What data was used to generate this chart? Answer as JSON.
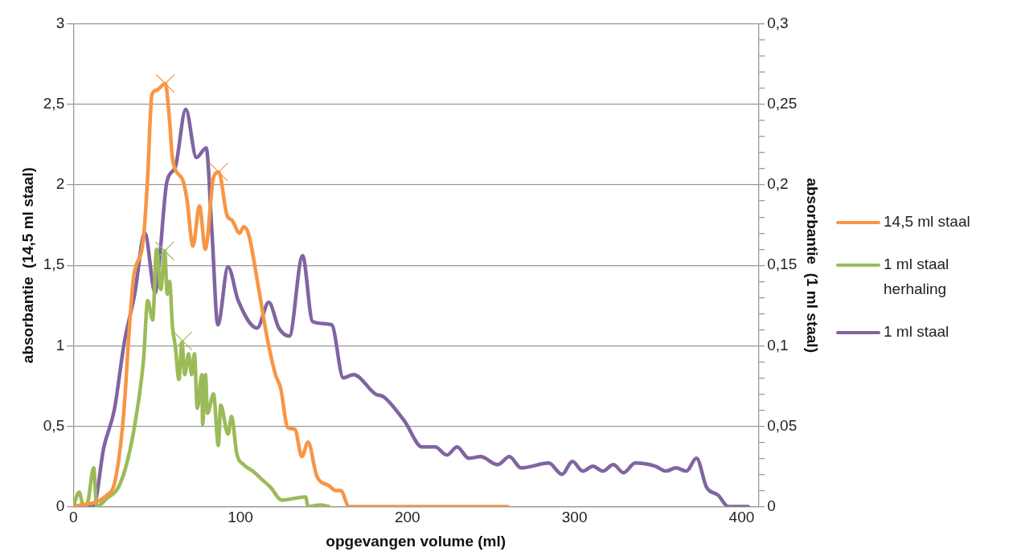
{
  "chart_data": {
    "type": "line",
    "xlabel": "opgevangen volume (ml)",
    "ylabel": "absorbantie  (14,5 ml staal)",
    "y2label": "absorbantie  (1 ml staal)",
    "xlim": [
      0,
      410
    ],
    "xticks": [
      0,
      100,
      200,
      300,
      400
    ],
    "ylim": [
      0,
      3
    ],
    "yticks": [
      0,
      {
        "value": 0.5,
        "label": "0,5"
      },
      1,
      {
        "value": 1.5,
        "label": "1,5"
      },
      2,
      {
        "value": 2.5,
        "label": "2,5"
      },
      3
    ],
    "y2lim": [
      0,
      0.3
    ],
    "y2ticks": [
      0,
      {
        "value": 0.01,
        "label": null
      },
      {
        "value": 0.02,
        "label": null
      },
      {
        "value": 0.03,
        "label": null
      },
      {
        "value": 0.04,
        "label": null
      },
      {
        "value": 0.05,
        "label": "0,05"
      },
      {
        "value": 0.06,
        "label": null
      },
      {
        "value": 0.07,
        "label": null
      },
      {
        "value": 0.08,
        "label": null
      },
      {
        "value": 0.09,
        "label": null
      },
      {
        "value": 0.1,
        "label": "0,1"
      },
      {
        "value": 0.11,
        "label": null
      },
      {
        "value": 0.12,
        "label": null
      },
      {
        "value": 0.13,
        "label": null
      },
      {
        "value": 0.14,
        "label": null
      },
      {
        "value": 0.15,
        "label": "0,15"
      },
      {
        "value": 0.16,
        "label": null
      },
      {
        "value": 0.17,
        "label": null
      },
      {
        "value": 0.18,
        "label": null
      },
      {
        "value": 0.19,
        "label": null
      },
      {
        "value": 0.2,
        "label": "0,2"
      },
      {
        "value": 0.21,
        "label": null
      },
      {
        "value": 0.22,
        "label": null
      },
      {
        "value": 0.23,
        "label": null
      },
      {
        "value": 0.24,
        "label": null
      },
      {
        "value": 0.25,
        "label": "0,25"
      },
      {
        "value": 0.26,
        "label": null
      },
      {
        "value": 0.27,
        "label": null
      },
      {
        "value": 0.28,
        "label": null
      },
      {
        "value": 0.29,
        "label": null
      },
      {
        "value": 0.3,
        "label": "0,3"
      }
    ],
    "grid": "y",
    "legend": "right",
    "marker": "none",
    "line_style": "solid",
    "series": [
      {
        "name": "14,5 ml staal",
        "color": "#f79646",
        "x": [
          0,
          20,
          25,
          30,
          34,
          36,
          42,
          44.5,
          47,
          50,
          55,
          57.6,
          59.4,
          65.5,
          68,
          71.6,
          75.5,
          79,
          84,
          87,
          92,
          95,
          99.6,
          102,
          105,
          111,
          116,
          121,
          124,
          128.4,
          132.6,
          136.8,
          140.5,
          145.7,
          152.9,
          157,
          160,
          165,
          260
        ],
        "values": [
          0,
          0.07,
          0.16,
          0.56,
          1.18,
          1.42,
          1.67,
          2.05,
          2.56,
          2.59,
          2.63,
          2.4,
          2.16,
          2.03,
          1.91,
          1.62,
          1.87,
          1.6,
          2.05,
          2.08,
          1.81,
          1.78,
          1.7,
          1.74,
          1.69,
          1.35,
          1.05,
          0.82,
          0.74,
          0.49,
          0.48,
          0.31,
          0.4,
          0.19,
          0.13,
          0.1,
          0.1,
          0,
          0
        ]
      },
      {
        "name": "1 ml staal herhaling",
        "color": "#9bbb59",
        "axis": "y2",
        "x": [
          0,
          3.5,
          6,
          8.7,
          12.2,
          14,
          20,
          27,
          32.3,
          37.6,
          42,
          44.5,
          47.5,
          49.8,
          52.4,
          54.7,
          56.2,
          57.6,
          59.4,
          61,
          63.2,
          65,
          66.7,
          69,
          70.8,
          72.5,
          74.2,
          76.9,
          77.4,
          79.1,
          80.3,
          83.9,
          86.8,
          88.2,
          92.6,
          94.7,
          97.8,
          102,
          107.4,
          112.7,
          118,
          124.7,
          139,
          140.5,
          148,
          153
        ],
        "values": [
          0,
          0.009,
          0,
          0.003,
          0.024,
          0,
          0.005,
          0.012,
          0.028,
          0.056,
          0.091,
          0.128,
          0.116,
          0.16,
          0.135,
          0.159,
          0.132,
          0.14,
          0.111,
          0.1,
          0.079,
          0.102,
          0.082,
          0.095,
          0.082,
          0.095,
          0.061,
          0.082,
          0.051,
          0.082,
          0.058,
          0.07,
          0.038,
          0.063,
          0.045,
          0.056,
          0.033,
          0.026,
          0.022,
          0.017,
          0.012,
          0.004,
          0.006,
          0,
          0.001,
          0
        ]
      },
      {
        "name": "1 ml staal",
        "color": "#8064a2",
        "axis": "y2",
        "x": [
          0,
          12,
          18.3,
          24.5,
          30.5,
          36.7,
          42.8,
          49,
          51.5,
          56,
          61,
          67.3,
          73.7,
          79.5,
          83,
          86.5,
          92.6,
          98.7,
          110,
          117,
          123,
          129.3,
          137.2,
          143.2,
          154.6,
          161.6,
          167.7,
          180.8,
          186,
          198.3,
          208.8,
          216.6,
          223.6,
          229.7,
          236.7,
          243.7,
          254,
          261,
          268,
          284.6,
          292.5,
          298.7,
          304.9,
          311,
          317,
          323.2,
          329.3,
          336.3,
          348.5,
          354.6,
          360.7,
          366.9,
          373,
          379,
          386,
          392,
          404
        ],
        "values": [
          0,
          0,
          0.037,
          0.06,
          0.102,
          0.132,
          0.17,
          0.133,
          0.153,
          0.202,
          0.211,
          0.247,
          0.217,
          0.223,
          0.17,
          0.113,
          0.149,
          0.128,
          0.111,
          0.127,
          0.111,
          0.106,
          0.156,
          0.115,
          0.113,
          0.08,
          0.082,
          0.07,
          0.068,
          0.053,
          0.037,
          0.037,
          0.032,
          0.037,
          0.03,
          0.031,
          0.026,
          0.031,
          0.024,
          0.027,
          0.02,
          0.028,
          0.022,
          0.025,
          0.022,
          0.026,
          0.021,
          0.027,
          0.025,
          0.022,
          0.024,
          0.022,
          0.03,
          0.012,
          0.007,
          0,
          0
        ]
      },
      {
        "type": "scatter",
        "marker": "cross",
        "color": "#f79646",
        "x": [
          55,
          87
        ],
        "values": [
          2.63,
          2.08
        ]
      },
      {
        "type": "scatter",
        "marker": "cross",
        "color": "#9bbb59",
        "axis": "y2",
        "x": [
          54.7,
          65.5
        ],
        "values": [
          0.159,
          0.103
        ]
      }
    ]
  }
}
